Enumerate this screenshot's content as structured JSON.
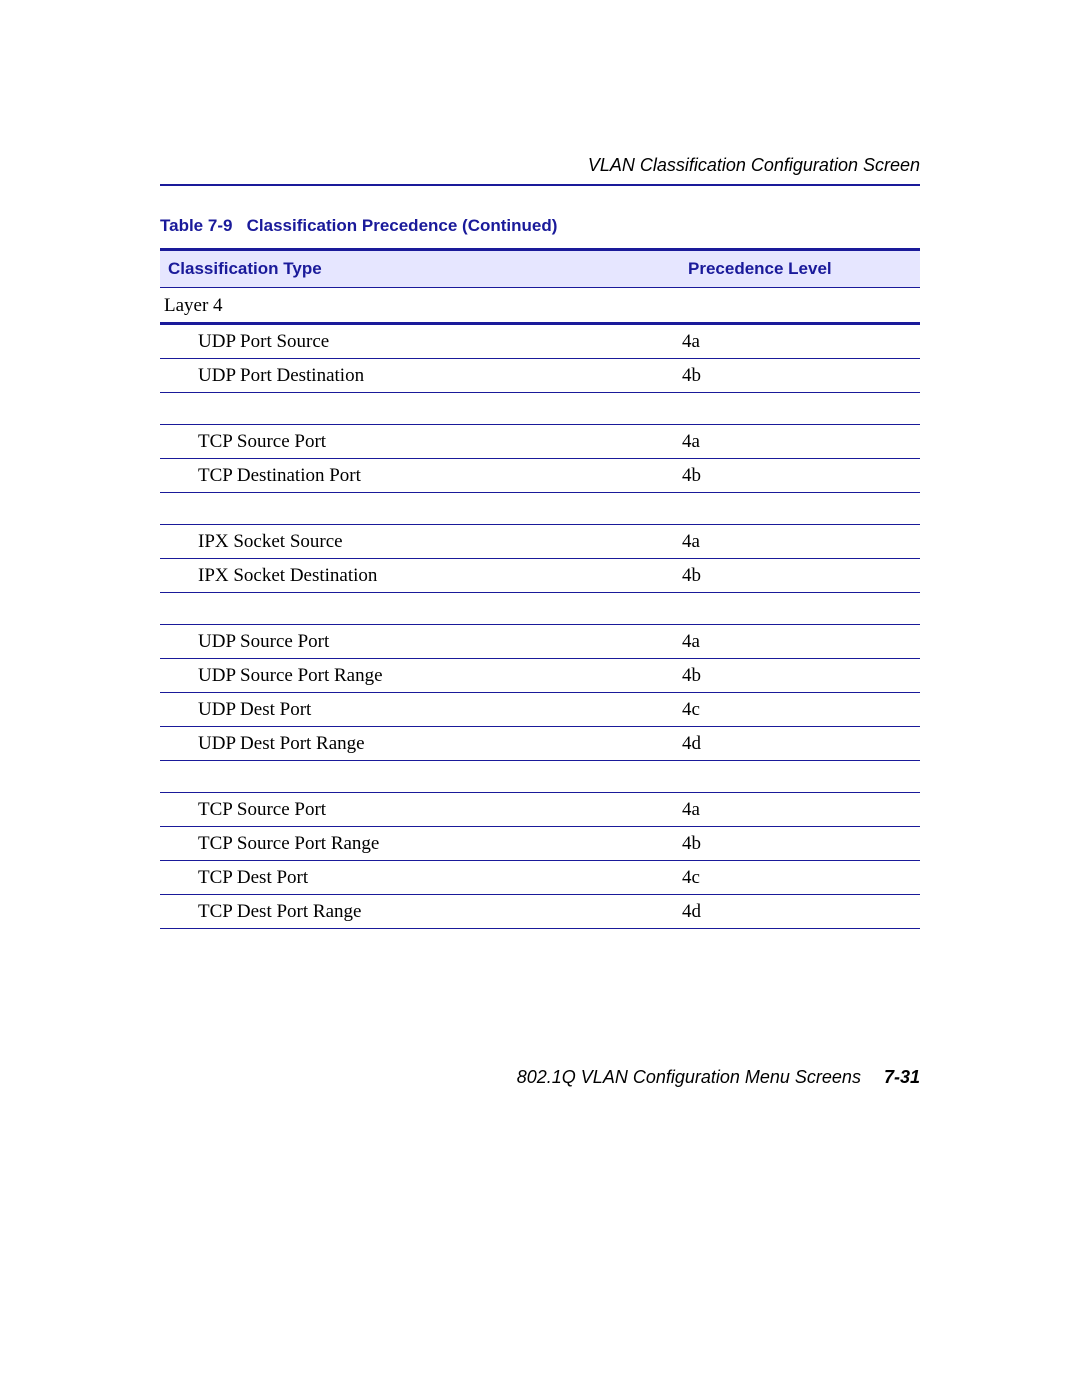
{
  "header": {
    "title": "VLAN Classification Configuration Screen"
  },
  "table": {
    "caption_prefix": "Table 7-9",
    "caption_text": "Classification Precedence (Continued)",
    "columns": {
      "type": "Classification Type",
      "precedence": "Precedence Level"
    },
    "section": "Layer 4",
    "groups": [
      [
        {
          "type": "UDP Port Source",
          "precedence": "4a"
        },
        {
          "type": "UDP Port Destination",
          "precedence": "4b"
        }
      ],
      [
        {
          "type": "TCP Source Port",
          "precedence": "4a"
        },
        {
          "type": "TCP Destination Port",
          "precedence": "4b"
        }
      ],
      [
        {
          "type": "IPX Socket Source",
          "precedence": "4a"
        },
        {
          "type": "IPX Socket Destination",
          "precedence": "4b"
        }
      ],
      [
        {
          "type": "UDP Source Port",
          "precedence": "4a"
        },
        {
          "type": "UDP Source Port Range",
          "precedence": "4b"
        },
        {
          "type": "UDP Dest Port",
          "precedence": "4c"
        },
        {
          "type": "UDP Dest Port Range",
          "precedence": "4d"
        }
      ],
      [
        {
          "type": "TCP Source Port",
          "precedence": "4a"
        },
        {
          "type": "TCP Source Port Range",
          "precedence": "4b"
        },
        {
          "type": "TCP Dest Port",
          "precedence": "4c"
        },
        {
          "type": "TCP Dest Port Range",
          "precedence": "4d"
        }
      ]
    ]
  },
  "footer": {
    "text": "802.1Q VLAN Configuration Menu Screens",
    "page": "7-31"
  },
  "colors": {
    "accent": "#1a1a9a",
    "header_bg": "#e6e6ff",
    "page_bg": "#ffffff",
    "text": "#000000"
  }
}
